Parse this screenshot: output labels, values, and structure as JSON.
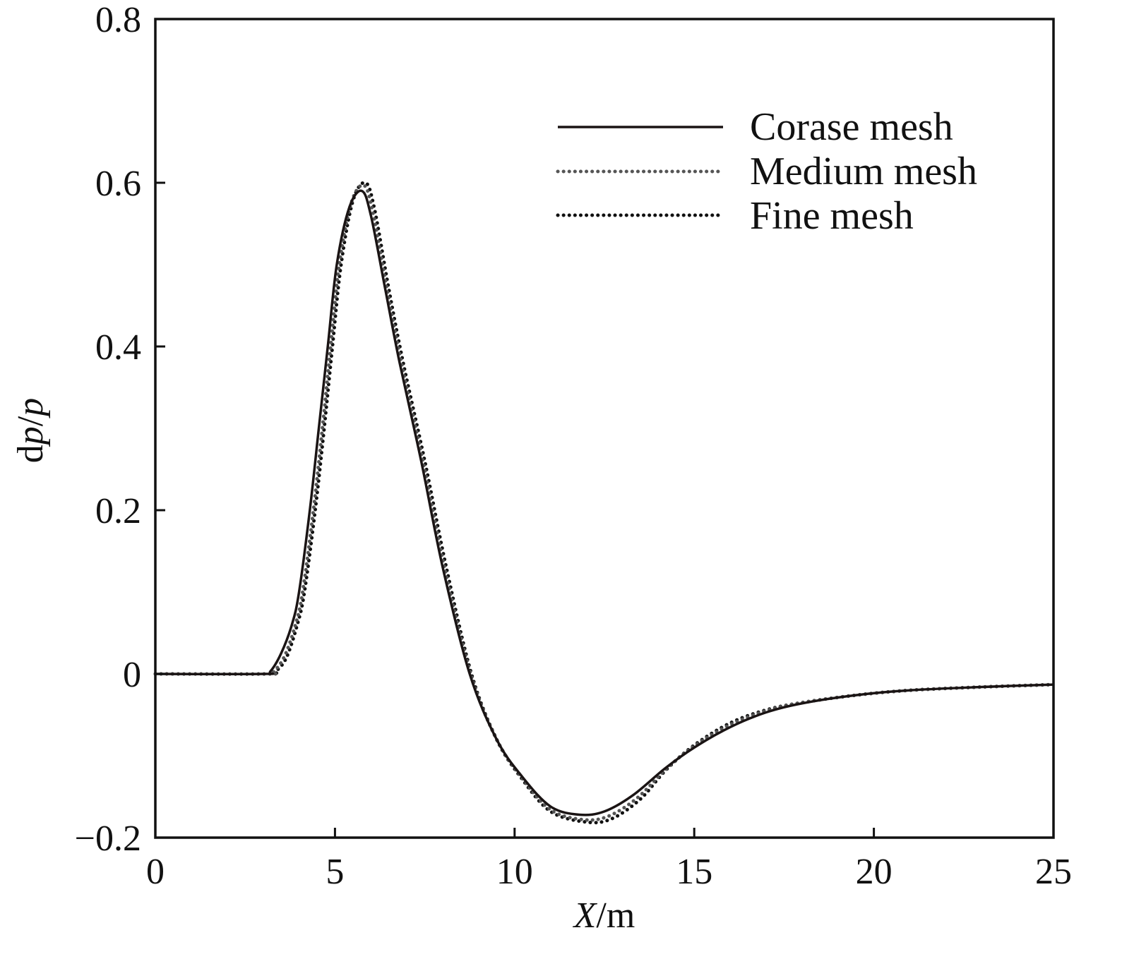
{
  "chart_data": {
    "type": "line",
    "title": "",
    "xlabel": {
      "italic": "X",
      "rest": "/m"
    },
    "ylabel": {
      "d": "d",
      "p1": "p",
      "slash": "/",
      "p2": "p"
    },
    "xlim": [
      0,
      25
    ],
    "ylim": [
      -0.2,
      0.8
    ],
    "xticks": [
      0,
      5,
      10,
      15,
      20,
      25
    ],
    "xtick_labels": [
      "0",
      "5",
      "10",
      "15",
      "20",
      "25"
    ],
    "yticks": [
      -0.2,
      0,
      0.2,
      0.4,
      0.6,
      0.8
    ],
    "ytick_labels": [
      "−0.2",
      "0",
      "0.2",
      "0.4",
      "0.6",
      "0.8"
    ],
    "grid": false,
    "legend_placement": "top-right",
    "series": [
      {
        "name": "Corase mesh",
        "style": "solid",
        "color": "#1a1414",
        "points": [
          [
            0,
            0
          ],
          [
            3,
            0
          ],
          [
            3.2,
            0.003
          ],
          [
            3.5,
            0.025
          ],
          [
            3.8,
            0.06
          ],
          [
            4.0,
            0.1
          ],
          [
            4.3,
            0.2
          ],
          [
            4.55,
            0.3
          ],
          [
            4.8,
            0.4
          ],
          [
            5.05,
            0.5
          ],
          [
            5.4,
            0.57
          ],
          [
            5.75,
            0.59
          ],
          [
            6.0,
            0.56
          ],
          [
            6.4,
            0.47
          ],
          [
            6.8,
            0.38
          ],
          [
            7.4,
            0.26
          ],
          [
            8.0,
            0.13
          ],
          [
            8.75,
            0.0
          ],
          [
            9.5,
            -0.08
          ],
          [
            10.2,
            -0.125
          ],
          [
            11.0,
            -0.162
          ],
          [
            11.8,
            -0.172
          ],
          [
            12.5,
            -0.168
          ],
          [
            13.3,
            -0.148
          ],
          [
            14.2,
            -0.115
          ],
          [
            15.0,
            -0.09
          ],
          [
            16.0,
            -0.065
          ],
          [
            17.0,
            -0.047
          ],
          [
            18.0,
            -0.036
          ],
          [
            19.5,
            -0.026
          ],
          [
            21,
            -0.02
          ],
          [
            23,
            -0.016
          ],
          [
            25,
            -0.013
          ]
        ]
      },
      {
        "name": "Medium mesh",
        "style": "dotted",
        "color": "#555",
        "points": [
          [
            0,
            0
          ],
          [
            3.1,
            0
          ],
          [
            3.3,
            0.003
          ],
          [
            3.6,
            0.022
          ],
          [
            3.9,
            0.06
          ],
          [
            4.1,
            0.1
          ],
          [
            4.4,
            0.2
          ],
          [
            4.65,
            0.3
          ],
          [
            4.88,
            0.4
          ],
          [
            5.12,
            0.5
          ],
          [
            5.45,
            0.575
          ],
          [
            5.8,
            0.597
          ],
          [
            6.05,
            0.565
          ],
          [
            6.45,
            0.47
          ],
          [
            6.85,
            0.38
          ],
          [
            7.45,
            0.26
          ],
          [
            8.05,
            0.13
          ],
          [
            8.78,
            0.0
          ],
          [
            9.5,
            -0.08
          ],
          [
            10.2,
            -0.127
          ],
          [
            11.0,
            -0.166
          ],
          [
            11.9,
            -0.178
          ],
          [
            12.6,
            -0.174
          ],
          [
            13.4,
            -0.152
          ],
          [
            14.2,
            -0.117
          ],
          [
            15.0,
            -0.088
          ],
          [
            16.0,
            -0.062
          ],
          [
            17.0,
            -0.045
          ],
          [
            18.0,
            -0.035
          ],
          [
            19.5,
            -0.026
          ],
          [
            21,
            -0.02
          ],
          [
            23,
            -0.016
          ],
          [
            25,
            -0.013
          ]
        ]
      },
      {
        "name": "Fine mesh",
        "style": "dotted",
        "color": "#111",
        "points": [
          [
            0,
            0
          ],
          [
            3.15,
            0
          ],
          [
            3.35,
            0.003
          ],
          [
            3.65,
            0.02
          ],
          [
            3.95,
            0.06
          ],
          [
            4.15,
            0.1
          ],
          [
            4.45,
            0.2
          ],
          [
            4.7,
            0.3
          ],
          [
            4.93,
            0.4
          ],
          [
            5.17,
            0.5
          ],
          [
            5.5,
            0.578
          ],
          [
            5.85,
            0.6
          ],
          [
            6.1,
            0.568
          ],
          [
            6.5,
            0.47
          ],
          [
            6.9,
            0.38
          ],
          [
            7.5,
            0.26
          ],
          [
            8.1,
            0.13
          ],
          [
            8.8,
            0.0
          ],
          [
            9.5,
            -0.08
          ],
          [
            10.2,
            -0.128
          ],
          [
            11.0,
            -0.168
          ],
          [
            12.0,
            -0.181
          ],
          [
            12.7,
            -0.177
          ],
          [
            13.5,
            -0.153
          ],
          [
            14.2,
            -0.118
          ],
          [
            15.0,
            -0.087
          ],
          [
            16.0,
            -0.06
          ],
          [
            17.0,
            -0.044
          ],
          [
            18.0,
            -0.035
          ],
          [
            19.5,
            -0.026
          ],
          [
            21,
            -0.02
          ],
          [
            23,
            -0.016
          ],
          [
            25,
            -0.013
          ]
        ]
      }
    ]
  }
}
